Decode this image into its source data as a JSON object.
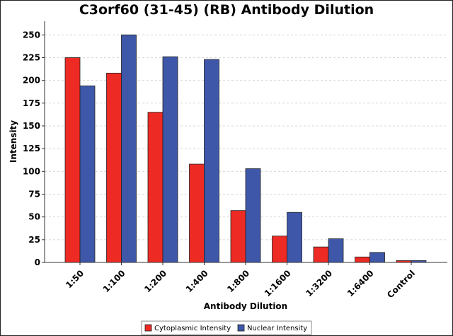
{
  "chart_data": {
    "type": "bar",
    "title": "C3orf60 (31-45) (RB) Antibody Dilution",
    "xlabel": "Antibody Dilution",
    "ylabel": "Intensity",
    "ylim": [
      0,
      265
    ],
    "yticks": [
      0,
      25,
      50,
      75,
      100,
      125,
      150,
      175,
      200,
      225,
      250
    ],
    "grid": true,
    "legend_position": "bottom",
    "categories": [
      "1:50",
      "1:100",
      "1:200",
      "1:400",
      "1:800",
      "1:1600",
      "1:3200",
      "1:6400",
      "Control"
    ],
    "series": [
      {
        "name": "Cytoplasmic Intensity",
        "color": "#ee2a24",
        "values": [
          225,
          208,
          165,
          108,
          57,
          29,
          17,
          6,
          2
        ]
      },
      {
        "name": "Nuclear Intensity",
        "color": "#3f57a8",
        "values": [
          194,
          250,
          226,
          223,
          103,
          55,
          26,
          11,
          2
        ]
      }
    ]
  }
}
